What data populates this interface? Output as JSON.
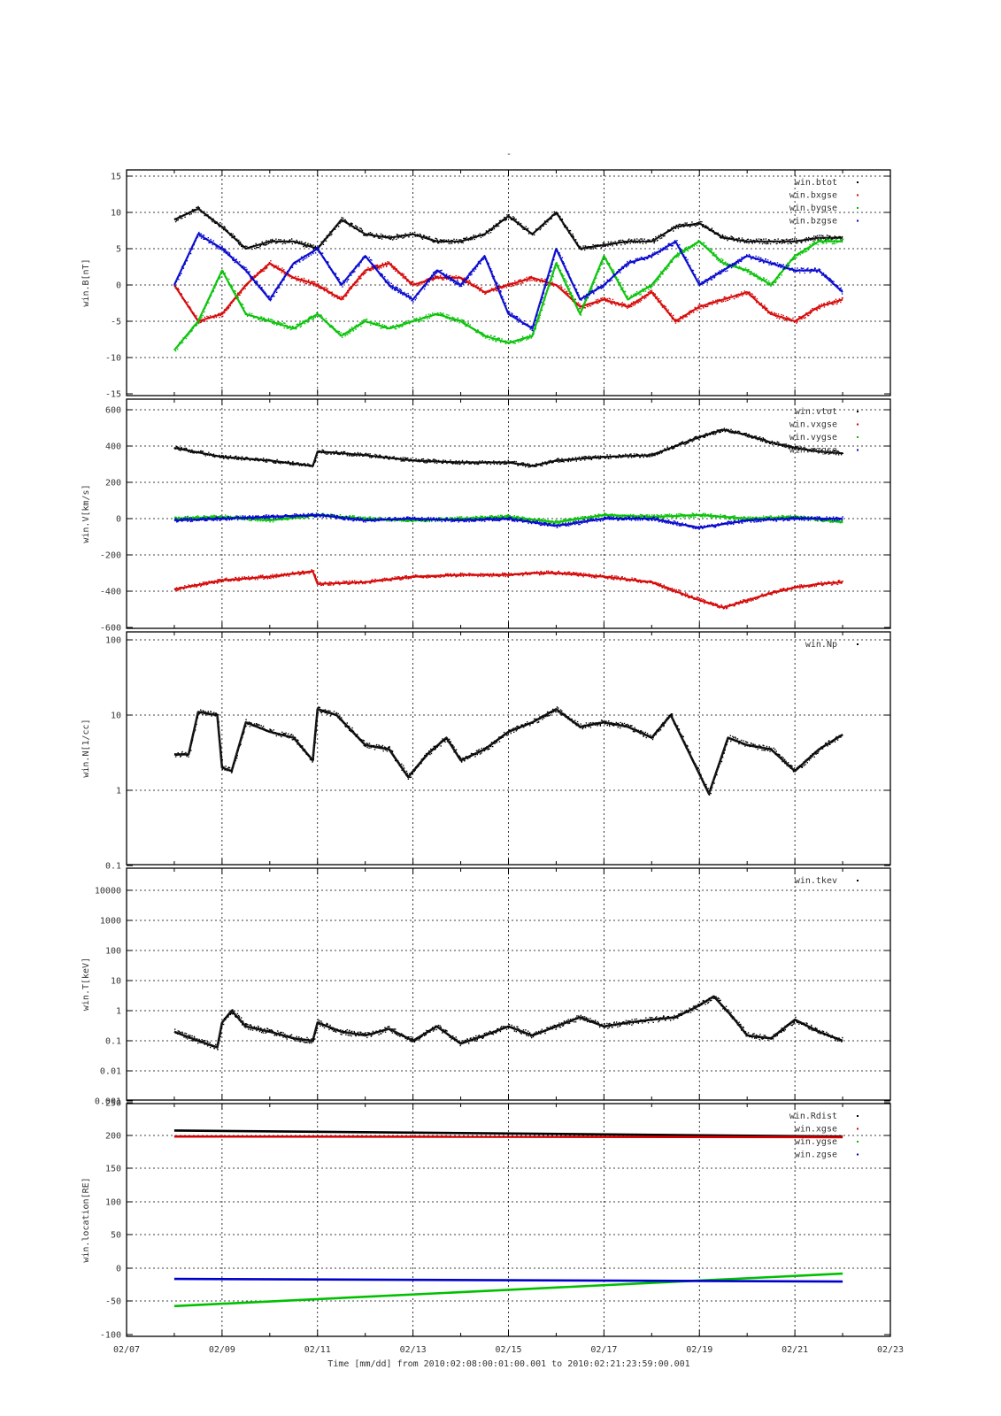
{
  "figure": {
    "top_title": "-",
    "x_title": "Time [mm/dd]  from 2010:02:08:00:01:00.001  to  2010:02:21:23:59:00.001",
    "x_ticks": [
      "02/07",
      "02/09",
      "02/11",
      "02/13",
      "02/15",
      "02/17",
      "02/19",
      "02/21",
      "02/23"
    ]
  },
  "chart_data": [
    {
      "type": "scatter",
      "ylabel": "win.B[nT]",
      "ylim": [
        -15,
        15
      ],
      "yscale": "linear",
      "yticks": [
        "15",
        "10",
        "5",
        "0",
        "-5",
        "-10",
        "-15"
      ],
      "xlim": [
        "02/07",
        "02/23"
      ],
      "grid": true,
      "legend_position": "top-right",
      "series": [
        {
          "name": "win.btot",
          "color": "#000000",
          "x": [
            "02/08",
            "02/08.5",
            "02/09",
            "02/09.5",
            "02/10",
            "02/10.5",
            "02/11",
            "02/11.5",
            "02/12",
            "02/12.5",
            "02/13",
            "02/13.5",
            "02/14",
            "02/14.5",
            "02/15",
            "02/15.5",
            "02/16",
            "02/16.5",
            "02/17",
            "02/17.5",
            "02/18",
            "02/18.5",
            "02/19",
            "02/19.5",
            "02/20",
            "02/20.5",
            "02/21",
            "02/21.5",
            "02/22"
          ],
          "values": [
            9,
            10.5,
            8,
            5,
            6,
            6,
            5,
            9,
            7,
            6.5,
            7,
            6,
            6,
            7,
            9.5,
            7,
            10,
            5,
            5.5,
            6,
            6,
            8,
            8.5,
            6.5,
            6,
            6,
            6,
            6.5,
            6.5
          ]
        },
        {
          "name": "win.bxgse",
          "color": "#d40000",
          "x": [
            "02/08",
            "02/08.5",
            "02/09",
            "02/09.5",
            "02/10",
            "02/10.5",
            "02/11",
            "02/11.5",
            "02/12",
            "02/12.5",
            "02/13",
            "02/13.5",
            "02/14",
            "02/14.5",
            "02/15",
            "02/15.5",
            "02/16",
            "02/16.5",
            "02/17",
            "02/17.5",
            "02/18",
            "02/18.5",
            "02/19",
            "02/19.5",
            "02/20",
            "02/20.5",
            "02/21",
            "02/21.5",
            "02/22"
          ],
          "values": [
            0,
            -5,
            -4,
            0,
            3,
            1,
            0,
            -2,
            2,
            3,
            0,
            1,
            1,
            -1,
            0,
            1,
            0,
            -3,
            -2,
            -3,
            -1,
            -5,
            -3,
            -2,
            -1,
            -4,
            -5,
            -3,
            -2
          ]
        },
        {
          "name": "win.bygse",
          "color": "#00c000",
          "x": [
            "02/08",
            "02/08.5",
            "02/09",
            "02/09.5",
            "02/10",
            "02/10.5",
            "02/11",
            "02/11.5",
            "02/12",
            "02/12.5",
            "02/13",
            "02/13.5",
            "02/14",
            "02/14.5",
            "02/15",
            "02/15.5",
            "02/16",
            "02/16.5",
            "02/17",
            "02/17.5",
            "02/18",
            "02/18.5",
            "02/19",
            "02/19.5",
            "02/20",
            "02/20.5",
            "02/21",
            "02/21.5",
            "02/22"
          ],
          "values": [
            -9,
            -5,
            2,
            -4,
            -5,
            -6,
            -4,
            -7,
            -5,
            -6,
            -5,
            -4,
            -5,
            -7,
            -8,
            -7,
            3,
            -4,
            4,
            -2,
            0,
            4,
            6,
            3,
            2,
            0,
            4,
            6,
            6
          ]
        },
        {
          "name": "win.bzgse",
          "color": "#0000cc",
          "x": [
            "02/08",
            "02/08.5",
            "02/09",
            "02/09.5",
            "02/10",
            "02/10.5",
            "02/11",
            "02/11.5",
            "02/12",
            "02/12.5",
            "02/13",
            "02/13.5",
            "02/14",
            "02/14.5",
            "02/15",
            "02/15.5",
            "02/16",
            "02/16.5",
            "02/17",
            "02/17.5",
            "02/18",
            "02/18.5",
            "02/19",
            "02/19.5",
            "02/20",
            "02/20.5",
            "02/21",
            "02/21.5",
            "02/22"
          ],
          "values": [
            0,
            7,
            5,
            2,
            -2,
            3,
            5,
            0,
            4,
            0,
            -2,
            2,
            0,
            4,
            -4,
            -6,
            5,
            -2,
            0,
            3,
            4,
            6,
            0,
            2,
            4,
            3,
            2,
            2,
            -1
          ]
        }
      ]
    },
    {
      "type": "scatter",
      "ylabel": "win.V[km/s]",
      "ylim": [
        -600,
        600
      ],
      "yscale": "linear",
      "yticks": [
        "600",
        "400",
        "200",
        "0",
        "-200",
        "-400",
        "-600"
      ],
      "xlim": [
        "02/07",
        "02/23"
      ],
      "grid": true,
      "legend_position": "top-right",
      "series": [
        {
          "name": "win.vtot",
          "color": "#000000",
          "x": [
            "02/08",
            "02/09",
            "02/10",
            "02/10.9",
            "02/11",
            "02/12",
            "02/13",
            "02/14",
            "02/15",
            "02/15.5",
            "02/16",
            "02/17",
            "02/18",
            "02/18.5",
            "02/19",
            "02/19.5",
            "02/20",
            "02/20.5",
            "02/21",
            "02/21.5",
            "02/22"
          ],
          "values": [
            390,
            340,
            320,
            290,
            370,
            350,
            320,
            310,
            310,
            290,
            320,
            340,
            350,
            400,
            450,
            490,
            460,
            420,
            390,
            370,
            360
          ]
        },
        {
          "name": "win.vxgse",
          "color": "#d40000",
          "x": [
            "02/08",
            "02/09",
            "02/10",
            "02/10.9",
            "02/11",
            "02/12",
            "02/13",
            "02/14",
            "02/15",
            "02/15.5",
            "02/16",
            "02/17",
            "02/18",
            "02/18.5",
            "02/19",
            "02/19.5",
            "02/20",
            "02/20.5",
            "02/21",
            "02/21.5",
            "02/22"
          ],
          "values": [
            -390,
            -340,
            -320,
            -290,
            -360,
            -350,
            -320,
            -310,
            -310,
            -300,
            -300,
            -320,
            -350,
            -400,
            -450,
            -490,
            -450,
            -410,
            -380,
            -360,
            -350
          ]
        },
        {
          "name": "win.vygse",
          "color": "#00c000",
          "x": [
            "02/08",
            "02/09",
            "02/10",
            "02/11",
            "02/12",
            "02/13",
            "02/14",
            "02/15",
            "02/16",
            "02/17",
            "02/18",
            "02/19",
            "02/20",
            "02/21",
            "02/22"
          ],
          "values": [
            0,
            10,
            -10,
            20,
            0,
            -10,
            0,
            10,
            -20,
            20,
            10,
            20,
            0,
            10,
            -20
          ]
        },
        {
          "name": "win.vzgse",
          "color": "#0000cc",
          "x": [
            "02/08",
            "02/09",
            "02/10",
            "02/11",
            "02/12",
            "02/13",
            "02/14",
            "02/15",
            "02/16",
            "02/17",
            "02/18",
            "02/19",
            "02/20",
            "02/21",
            "02/22"
          ],
          "values": [
            -10,
            0,
            10,
            20,
            -10,
            0,
            -10,
            0,
            -40,
            0,
            0,
            -50,
            -10,
            0,
            0
          ]
        }
      ]
    },
    {
      "type": "scatter",
      "ylabel": "win.N[1/cc]",
      "ylim": [
        0.1,
        100
      ],
      "yscale": "log",
      "yticks": [
        "100",
        "10",
        "1",
        "0.1"
      ],
      "xlim": [
        "02/07",
        "02/23"
      ],
      "grid": true,
      "legend_position": "top-right",
      "series": [
        {
          "name": "win.Np",
          "color": "#000000",
          "x": [
            "02/08",
            "02/08.3",
            "02/08.5",
            "02/08.9",
            "02/09",
            "02/09.2",
            "02/09.5",
            "02/10",
            "02/10.5",
            "02/10.9",
            "02/11",
            "02/11.4",
            "02/12",
            "02/12.5",
            "02/12.9",
            "02/13.3",
            "02/13.7",
            "02/14",
            "02/14.5",
            "02/15",
            "02/15.5",
            "02/16",
            "02/16.5",
            "02/17",
            "02/17.5",
            "02/18",
            "02/18.4",
            "02/18.8",
            "02/19.2",
            "02/19.6",
            "02/20",
            "02/20.5",
            "02/21",
            "02/21.5",
            "02/22"
          ],
          "values": [
            3,
            3,
            11,
            10,
            2,
            1.8,
            8,
            6,
            5,
            2.5,
            12,
            10,
            4,
            3.5,
            1.5,
            3,
            5,
            2.5,
            3.5,
            6,
            8,
            12,
            7,
            8,
            7,
            5,
            10,
            3,
            0.9,
            5,
            4,
            3.5,
            1.8,
            3.5,
            5.5
          ]
        }
      ]
    },
    {
      "type": "scatter",
      "ylabel": "win.T[keV]",
      "ylim": [
        0.001,
        30000
      ],
      "yscale": "log",
      "yticks": [
        "10000",
        "1000",
        "100",
        "10",
        "1",
        "0.1",
        "0.01",
        "0.001"
      ],
      "xlim": [
        "02/07",
        "02/23"
      ],
      "grid": true,
      "legend_position": "top-right",
      "series": [
        {
          "name": "win.tkev",
          "color": "#000000",
          "x": [
            "02/08",
            "02/08.5",
            "02/08.9",
            "02/09",
            "02/09.2",
            "02/09.5",
            "02/10",
            "02/10.5",
            "02/10.9",
            "02/11",
            "02/11.5",
            "02/12",
            "02/12.5",
            "02/13",
            "02/13.5",
            "02/14",
            "02/14.5",
            "02/15",
            "02/15.5",
            "02/16",
            "02/16.5",
            "02/17",
            "02/17.5",
            "02/18",
            "02/18.5",
            "02/19",
            "02/19.3",
            "02/19.7",
            "02/20",
            "02/20.5",
            "02/21",
            "02/21.5",
            "02/22"
          ],
          "values": [
            0.2,
            0.1,
            0.06,
            0.4,
            1.0,
            0.3,
            0.2,
            0.12,
            0.1,
            0.4,
            0.2,
            0.15,
            0.25,
            0.1,
            0.3,
            0.08,
            0.15,
            0.3,
            0.15,
            0.3,
            0.6,
            0.3,
            0.4,
            0.5,
            0.6,
            1.5,
            3,
            0.6,
            0.15,
            0.12,
            0.5,
            0.2,
            0.1
          ]
        }
      ]
    },
    {
      "type": "line",
      "ylabel": "win.location[RE]",
      "ylim": [
        -100,
        250
      ],
      "yscale": "linear",
      "yticks": [
        "250",
        "200",
        "150",
        "100",
        "50",
        "0",
        "-50",
        "-100"
      ],
      "xlim": [
        "02/07",
        "02/23"
      ],
      "grid": true,
      "legend_position": "top-right",
      "series": [
        {
          "name": "win.Rdist",
          "color": "#000000",
          "x": [
            "02/08",
            "02/22"
          ],
          "values": [
            208,
            199
          ]
        },
        {
          "name": "win.xgse",
          "color": "#d40000",
          "x": [
            "02/08",
            "02/22"
          ],
          "values": [
            199,
            198
          ]
        },
        {
          "name": "win.ygse",
          "color": "#00c000",
          "x": [
            "02/08",
            "02/22"
          ],
          "values": [
            -57,
            -8
          ]
        },
        {
          "name": "win.zgse",
          "color": "#0000cc",
          "x": [
            "02/08",
            "02/22"
          ],
          "values": [
            -16,
            -20
          ]
        }
      ]
    }
  ]
}
